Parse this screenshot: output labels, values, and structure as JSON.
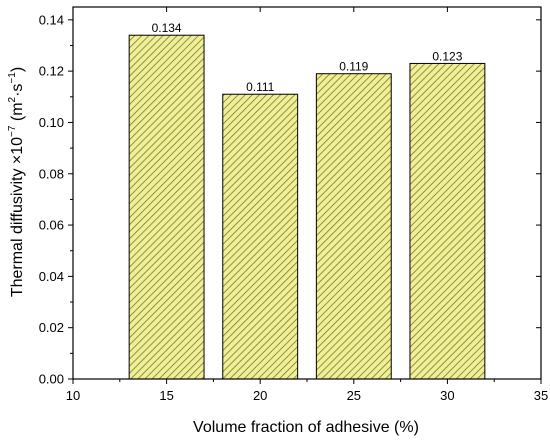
{
  "chart_data": {
    "type": "bar",
    "x": [
      15,
      20,
      25,
      30
    ],
    "values": [
      0.134,
      0.111,
      0.119,
      0.123
    ],
    "data_labels": [
      "0.134",
      "0.111",
      "0.119",
      "0.123"
    ],
    "bar_width": 4,
    "xlabel": "Volume fraction of adhesive (%)",
    "ylabel": {
      "main": "Thermal diffusivity ×10",
      "exp": "−7",
      "unit_open": " (m",
      "unit_sq": "2",
      "unit_mid": "·s",
      "unit_exp": "−1",
      "unit_close": ")"
    },
    "xlim": [
      10,
      35
    ],
    "ylim": [
      0,
      0.145
    ],
    "xticks": [
      10,
      15,
      20,
      25,
      30,
      35
    ],
    "yticks": [
      "0.00",
      "0.02",
      "0.04",
      "0.06",
      "0.08",
      "0.10",
      "0.12",
      "0.14"
    ],
    "grid": false,
    "bar_fill": "#efef9a",
    "bar_hatch": "#7a7a1e",
    "bar_edge": "#000000",
    "axis_color": "#000000"
  }
}
